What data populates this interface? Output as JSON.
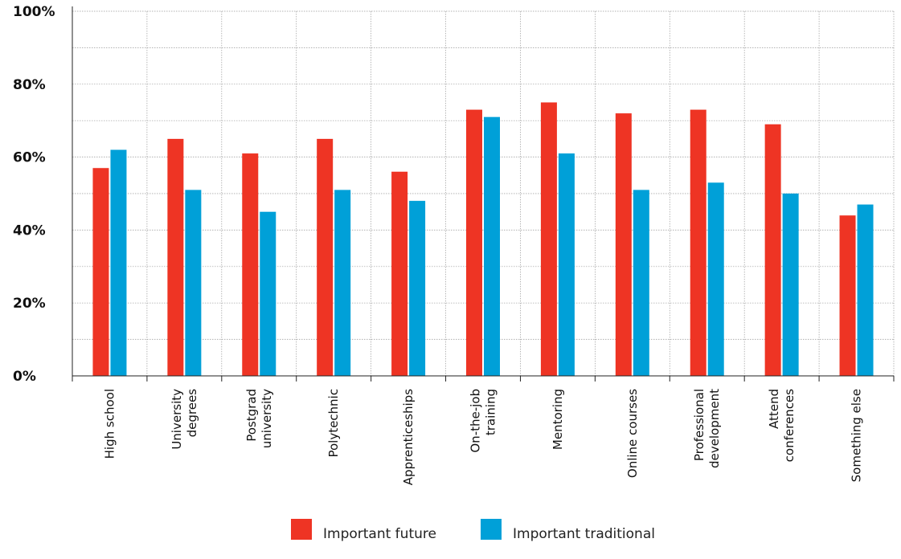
{
  "chart_data": {
    "type": "bar",
    "title": "",
    "xlabel": "",
    "ylabel": "",
    "ylim": [
      0,
      100
    ],
    "yticks": [
      "0%",
      "20%",
      "40%",
      "60%",
      "80%",
      "100%"
    ],
    "ytick_values": [
      0,
      20,
      40,
      60,
      80,
      100
    ],
    "categories": [
      [
        "High school"
      ],
      [
        "University",
        "degrees"
      ],
      [
        "Postgrad",
        "university"
      ],
      [
        "Polytechnic"
      ],
      [
        "Apprenticeships"
      ],
      [
        "On-the-job",
        "training"
      ],
      [
        "Mentoring"
      ],
      [
        "Online courses"
      ],
      [
        "Professional",
        "development"
      ],
      [
        "Attend",
        "conferences"
      ],
      [
        "Something else"
      ]
    ],
    "series": [
      {
        "name": "Important future",
        "color": "#ee3424",
        "values": [
          57,
          65,
          61,
          65,
          56,
          73,
          75,
          72,
          73,
          69,
          44
        ]
      },
      {
        "name": "Important traditional",
        "color": "#00a0d8",
        "values": [
          62,
          51,
          45,
          51,
          48,
          71,
          61,
          51,
          53,
          50,
          47
        ]
      }
    ],
    "grid": true,
    "legend_position": "bottom-center"
  }
}
